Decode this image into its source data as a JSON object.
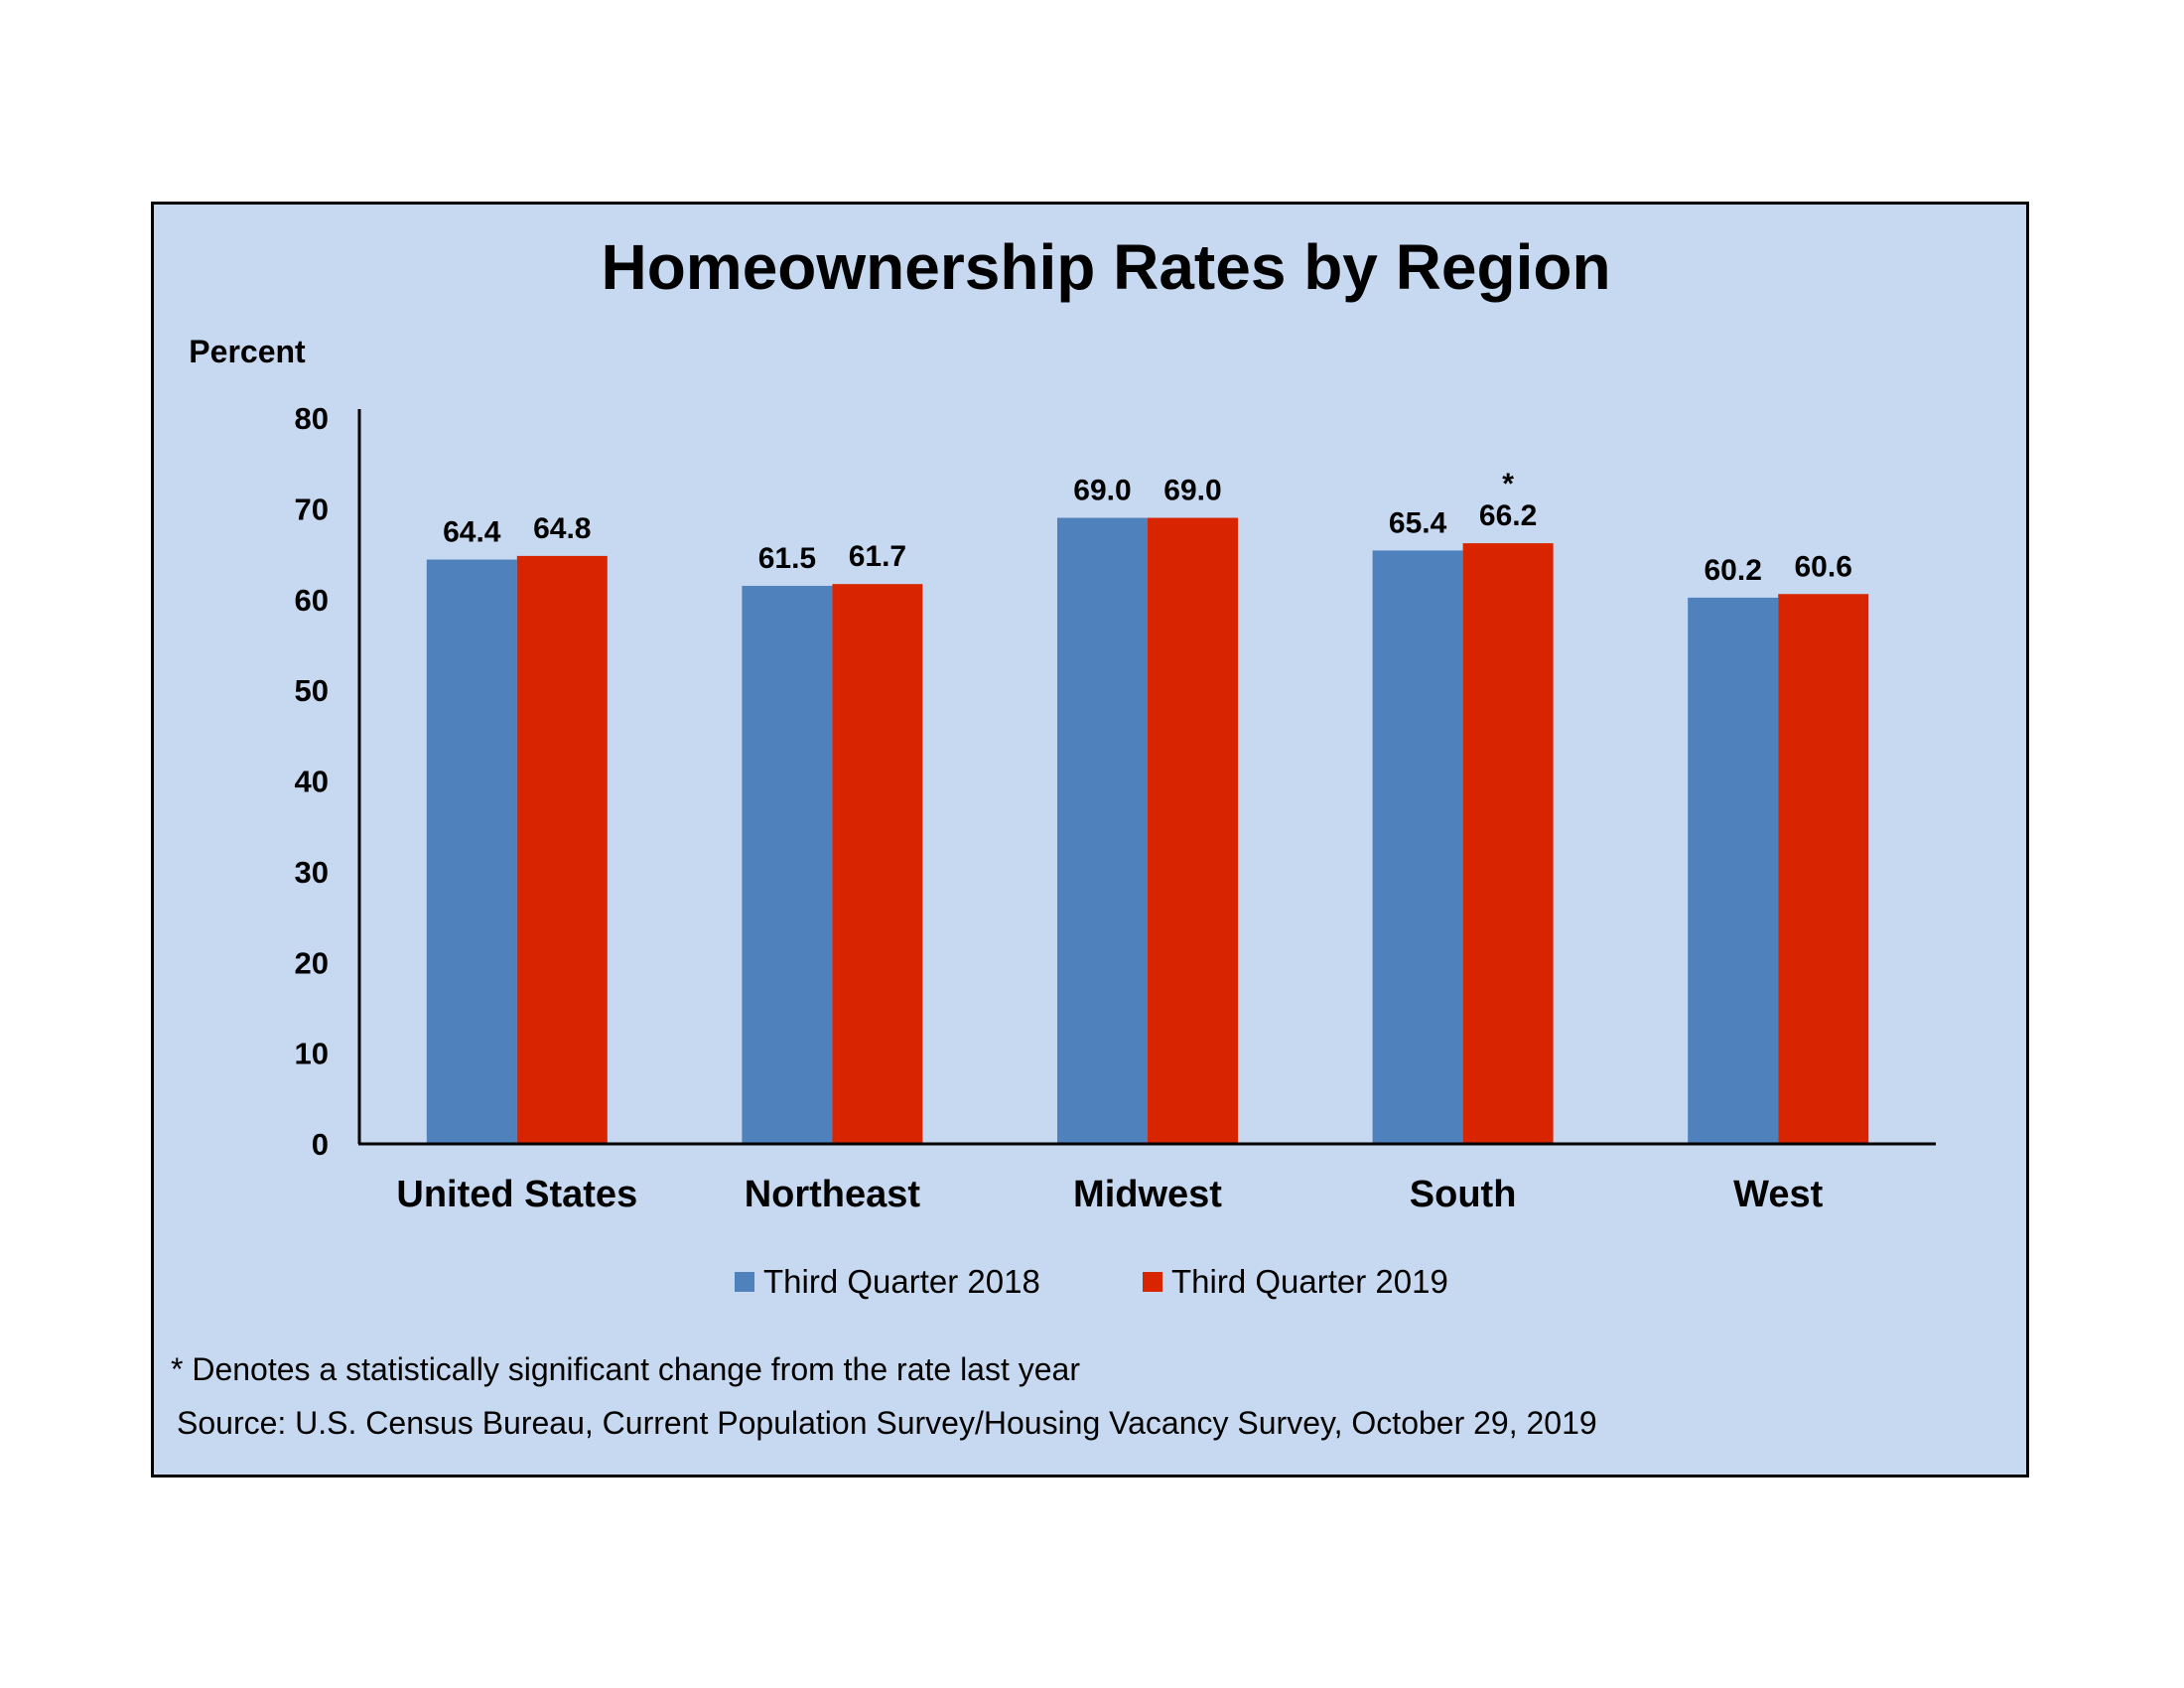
{
  "chart_data": {
    "type": "bar",
    "title": "Homeownership Rates by Region",
    "ylabel": "Percent",
    "xlabel": "",
    "ylim": [
      0,
      80
    ],
    "yticks": [
      0,
      10,
      20,
      30,
      40,
      50,
      60,
      70,
      80
    ],
    "categories": [
      "United States",
      "Northeast",
      "Midwest",
      "South",
      "West"
    ],
    "series": [
      {
        "name": "Third Quarter 2018",
        "color": "#4f81bd",
        "values": [
          64.4,
          61.5,
          69.0,
          65.4,
          60.2
        ],
        "labels": [
          "64.4",
          "61.5",
          "69.0",
          "65.4",
          "60.2"
        ]
      },
      {
        "name": "Third Quarter 2019",
        "color": "#d92400",
        "values": [
          64.8,
          61.7,
          69.0,
          66.2,
          60.6
        ],
        "labels": [
          "64.8",
          "61.7",
          "69.0",
          "66.2",
          "60.6"
        ]
      }
    ],
    "significance_marks": [
      {
        "series": 1,
        "category": 3,
        "symbol": "*"
      }
    ],
    "legend_position": "bottom",
    "grid": false
  },
  "footnote": "* Denotes a statistically significant change from the rate last year",
  "source": "Source: U.S. Census Bureau, Current Population Survey/Housing Vacancy Survey, October 29, 2019",
  "colors": {
    "panel_background": "#c6d9f0",
    "border": "#000000"
  }
}
